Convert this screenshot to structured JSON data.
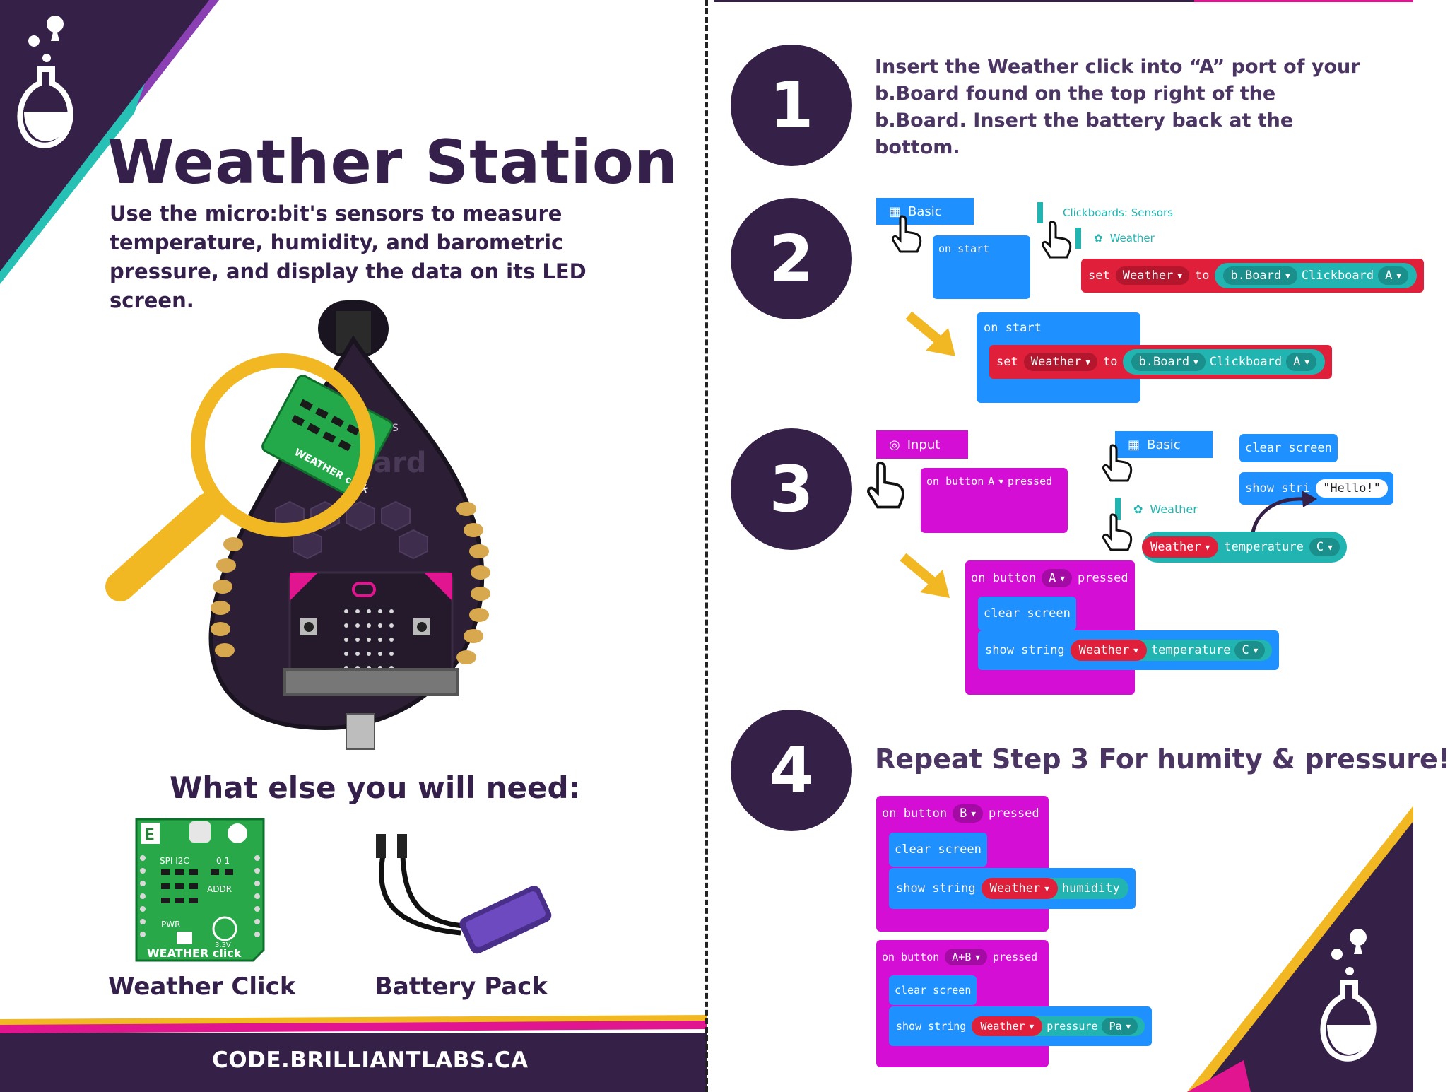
{
  "title": "Weather Station",
  "subtitle": "Use the micro:bit's sensors to measure temperature, humidity, and barometric pressure, and display the data on its LED screen.",
  "need_title": "What else you will need:",
  "items": {
    "weather_click": "Weather Click",
    "battery_pack": "Battery Pack"
  },
  "footer_url": "CODE.BRILLIANTLABS.CA",
  "board": {
    "label": "b.Board",
    "module_label": "WEATHER click",
    "brand": "ABOS"
  },
  "weather_click_board": {
    "name": "WEATHER click",
    "spi_i2c": "SPI I2C",
    "addr": "ADDR",
    "pwr": "PWR",
    "voltage": "3.3V",
    "jumper": "0  1"
  },
  "colors": {
    "purple": "#352047",
    "magenta": "#e0158f",
    "teal": "#26c0b5",
    "yellow": "#f2b824",
    "block_blue": "#1e90ff",
    "block_red": "#e0203b",
    "block_teal": "#22b4b0",
    "block_magenta": "#d40ed4"
  },
  "steps": {
    "s1": {
      "number": "1",
      "text": "Insert the Weather click into “A” port of your b.Board found on the top right of the b.Board. Insert the battery back at the bottom."
    },
    "s2": {
      "number": "2",
      "cat_basic": "Basic",
      "cat_clickboards": "Clickboards: Sensors",
      "cat_weather": "Weather",
      "on_start": "on start",
      "set": "set",
      "var": "Weather",
      "to": "to",
      "bboard": "b.Board",
      "clickboard": "Clickboard",
      "port": "A"
    },
    "s3": {
      "number": "3",
      "cat_input": "Input",
      "cat_basic": "Basic",
      "cat_weather": "Weather",
      "on_button": "on button",
      "button": "A",
      "pressed": "pressed",
      "clear_screen": "clear screen",
      "show_string": "show string",
      "show_string_partial": "show stri",
      "hello": "\"Hello!\"",
      "weather": "Weather",
      "temperature": "temperature",
      "unit": "C"
    },
    "s4": {
      "number": "4",
      "text": "Repeat Step 3 For humity & pressure!",
      "b1": {
        "on_button": "on button",
        "button": "B",
        "pressed": "pressed",
        "clear_screen": "clear screen",
        "show_string": "show string",
        "weather": "Weather",
        "measure": "humidity"
      },
      "b2": {
        "on_button": "on button",
        "button": "A+B",
        "pressed": "pressed",
        "clear_screen": "clear screen",
        "show_string": "show string",
        "weather": "Weather",
        "measure": "pressure",
        "unit": "Pa"
      }
    }
  }
}
